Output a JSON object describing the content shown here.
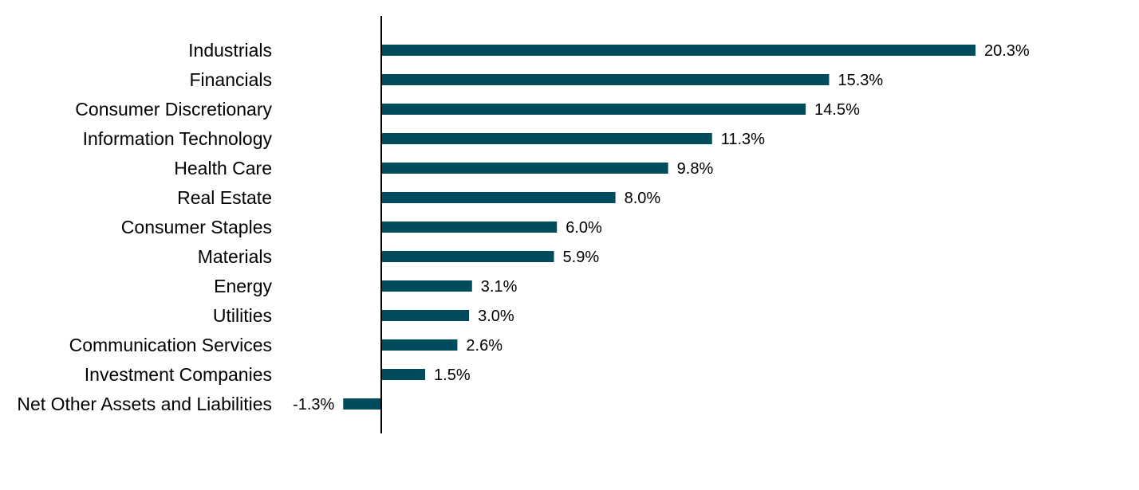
{
  "chart_data": {
    "type": "bar",
    "orientation": "horizontal",
    "title": "",
    "xlabel": "",
    "ylabel": "",
    "grid": false,
    "xlim": [
      -1.3,
      20.3
    ],
    "bar_color": "#004B5C",
    "axis_color": "#000000",
    "value_suffix": "%",
    "categories": [
      "Industrials",
      "Financials",
      "Consumer Discretionary",
      "Information Technology",
      "Health Care",
      "Real Estate",
      "Consumer Staples",
      "Materials",
      "Energy",
      "Utilities",
      "Communication Services",
      "Investment Companies",
      "Net Other Assets and Liabilities"
    ],
    "values": [
      20.3,
      15.3,
      14.5,
      11.3,
      9.8,
      8.0,
      6.0,
      5.9,
      3.1,
      3.0,
      2.6,
      1.5,
      -1.3
    ],
    "value_labels": [
      "20.3%",
      "15.3%",
      "14.5%",
      "11.3%",
      "9.8%",
      "8.0%",
      "6.0%",
      "5.9%",
      "3.1%",
      "3.0%",
      "2.6%",
      "1.5%",
      "-1.3%"
    ]
  }
}
